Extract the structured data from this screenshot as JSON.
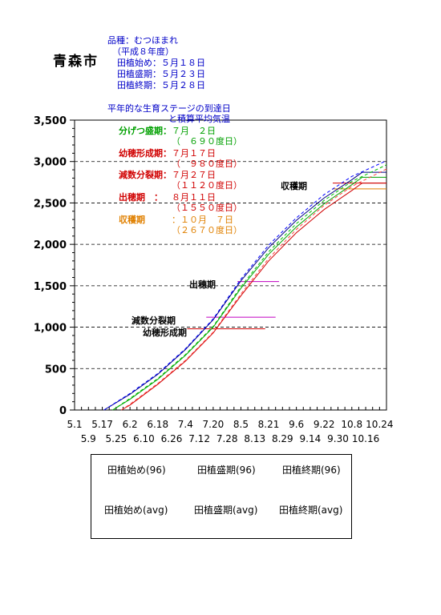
{
  "header": {
    "city": "青森市",
    "variety": "品種：むつほまれ",
    "year": "（平成８年度）",
    "planting_start": "田植始め：５月１８日",
    "planting_peak": "田植盛期：５月２３日",
    "planting_end": "田植終期：５月２８日"
  },
  "stage_panel": {
    "title_line1": "平年的な生育ステージの到達日",
    "title_line2": "と積算平均気温",
    "items": [
      {
        "label": "分げつ盛期：",
        "date": "７月　２日",
        "value": "（　６９０度日）",
        "color": "#00a000"
      },
      {
        "label": "幼穂形成期：",
        "date": "７月１７日",
        "value": "（　９８０度日）",
        "color": "#d00000"
      },
      {
        "label": "減数分裂期：",
        "date": "７月２７日",
        "value": "（１１２０度日）",
        "color": "#d00000"
      },
      {
        "label": "出穂期　：",
        "date": "８月１１日",
        "value": "（１５５０度日）",
        "color": "#d00000"
      },
      {
        "label": "収穫期　",
        "date": "：１０月　７日",
        "value": "（２６７０度日）",
        "color": "#e08000"
      }
    ]
  },
  "chart_data": {
    "type": "line",
    "title": "",
    "xlabel": "",
    "ylabel": "",
    "ylim": [
      0,
      3500
    ],
    "yticks": [
      0,
      500,
      1000,
      1500,
      2000,
      2500,
      3000,
      3500
    ],
    "ytick_labels": [
      "0",
      "500",
      "1,000",
      "1,500",
      "2,000",
      "2,500",
      "3,000",
      "3,500"
    ],
    "xlim_day": [
      1,
      181
    ],
    "xticks_row1": [
      {
        "day": 1,
        "label": "5.1"
      },
      {
        "day": 17,
        "label": "5.17"
      },
      {
        "day": 33,
        "label": "6.2"
      },
      {
        "day": 49,
        "label": "6.18"
      },
      {
        "day": 65,
        "label": "7.4"
      },
      {
        "day": 81,
        "label": "7.20"
      },
      {
        "day": 97,
        "label": "8.5"
      },
      {
        "day": 113,
        "label": "8.21"
      },
      {
        "day": 129,
        "label": "9.6"
      },
      {
        "day": 145,
        "label": "9.22"
      },
      {
        "day": 161,
        "label": "10.8"
      },
      {
        "day": 177,
        "label": "10.24"
      }
    ],
    "xticks_row2": [
      {
        "day": 9,
        "label": "5.9"
      },
      {
        "day": 25,
        "label": "5.25"
      },
      {
        "day": 41,
        "label": "6.10"
      },
      {
        "day": 57,
        "label": "6.26"
      },
      {
        "day": 73,
        "label": "7.12"
      },
      {
        "day": 89,
        "label": "7.28"
      },
      {
        "day": 105,
        "label": "8.13"
      },
      {
        "day": 121,
        "label": "8.29"
      },
      {
        "day": 137,
        "label": "9.14"
      },
      {
        "day": 153,
        "label": "9.30"
      },
      {
        "day": 169,
        "label": "10.16"
      }
    ],
    "grid": "horizontal dashed",
    "series": [
      {
        "name": "田植始め(96)",
        "color": "#000080",
        "dash": "solid",
        "start_day": 18,
        "points": [
          [
            18,
            0
          ],
          [
            33,
            190
          ],
          [
            49,
            430
          ],
          [
            65,
            730
          ],
          [
            81,
            1090
          ],
          [
            97,
            1560
          ],
          [
            113,
            1960
          ],
          [
            129,
            2290
          ],
          [
            145,
            2560
          ],
          [
            161,
            2780
          ],
          [
            167,
            2870
          ],
          [
            181,
            2870
          ]
        ]
      },
      {
        "name": "田植盛期(96)",
        "color": "#00a000",
        "dash": "solid",
        "start_day": 23,
        "points": [
          [
            23,
            0
          ],
          [
            33,
            130
          ],
          [
            49,
            370
          ],
          [
            65,
            660
          ],
          [
            81,
            1000
          ],
          [
            97,
            1470
          ],
          [
            113,
            1880
          ],
          [
            129,
            2210
          ],
          [
            145,
            2490
          ],
          [
            161,
            2720
          ],
          [
            167,
            2810
          ],
          [
            181,
            2810
          ]
        ]
      },
      {
        "name": "田植終期(96)",
        "color": "#d00000",
        "dash": "solid",
        "start_day": 28,
        "points": [
          [
            28,
            0
          ],
          [
            33,
            60
          ],
          [
            49,
            310
          ],
          [
            65,
            590
          ],
          [
            81,
            930
          ],
          [
            97,
            1380
          ],
          [
            113,
            1800
          ],
          [
            129,
            2140
          ],
          [
            145,
            2420
          ],
          [
            161,
            2650
          ],
          [
            167,
            2740
          ],
          [
            181,
            2740
          ]
        ]
      },
      {
        "name": "田植始め(avg)",
        "color": "#0000ff",
        "dash": "dashed",
        "start_day": 18,
        "points": [
          [
            18,
            0
          ],
          [
            33,
            200
          ],
          [
            49,
            440
          ],
          [
            65,
            740
          ],
          [
            81,
            1100
          ],
          [
            97,
            1580
          ],
          [
            113,
            1990
          ],
          [
            129,
            2320
          ],
          [
            145,
            2600
          ],
          [
            161,
            2820
          ],
          [
            181,
            3010
          ]
        ]
      },
      {
        "name": "田植盛期(avg)",
        "color": "#00c000",
        "dash": "dashed",
        "start_day": 23,
        "points": [
          [
            23,
            0
          ],
          [
            33,
            140
          ],
          [
            49,
            380
          ],
          [
            65,
            670
          ],
          [
            81,
            1010
          ],
          [
            97,
            1490
          ],
          [
            113,
            1910
          ],
          [
            129,
            2250
          ],
          [
            145,
            2530
          ],
          [
            161,
            2760
          ],
          [
            181,
            2960
          ]
        ]
      },
      {
        "name": "田植終期(avg)",
        "color": "#ff4040",
        "dash": "dashed",
        "start_day": 28,
        "points": [
          [
            28,
            0
          ],
          [
            33,
            70
          ],
          [
            49,
            320
          ],
          [
            65,
            600
          ],
          [
            81,
            940
          ],
          [
            97,
            1400
          ],
          [
            113,
            1830
          ],
          [
            129,
            2180
          ],
          [
            145,
            2470
          ],
          [
            161,
            2700
          ],
          [
            181,
            2910
          ]
        ]
      }
    ],
    "stage_markers": [
      {
        "label": "幼穂形成期",
        "value": 980,
        "color": "#d00000",
        "day_from": 66,
        "day_to": 111
      },
      {
        "label": "減数分裂期",
        "value": 1120,
        "color": "#c000c0",
        "day_from": 77,
        "day_to": 117
      },
      {
        "label": "出穂期",
        "value": 1550,
        "color": "#c000c0",
        "day_from": 95,
        "day_to": 119
      },
      {
        "label": "収穫期",
        "value": 2670,
        "color": "#e08000",
        "day_from": 150,
        "day_to": 181
      },
      {
        "label": "",
        "value": 2740,
        "color": "#d00000",
        "day_from": 150,
        "day_to": 181
      }
    ]
  },
  "legend": {
    "row1": [
      "田植始め(96)",
      "田植盛期(96)",
      "田植終期(96)"
    ],
    "row2": [
      "田植始め(avg)",
      "田植盛期(avg)",
      "田植終期(avg)"
    ],
    "colors96": [
      "#000080",
      "#00a000",
      "#d00000"
    ],
    "colorsavg": [
      "#0000ff",
      "#00c000",
      "#ff4040"
    ]
  }
}
